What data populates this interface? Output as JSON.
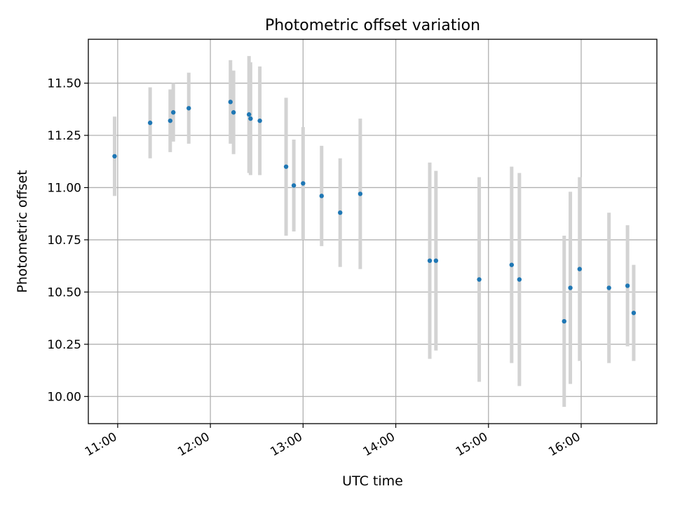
{
  "chart_data": {
    "type": "scatter",
    "title": "Photometric offset variation",
    "xlabel": "UTC time",
    "ylabel": "Photometric offset",
    "xlim": [
      "10:41",
      "16:49"
    ],
    "ylim": [
      9.87,
      11.71
    ],
    "x_ticks": [
      "11:00",
      "12:00",
      "13:00",
      "14:00",
      "15:00",
      "16:00"
    ],
    "y_ticks": [
      "10.00",
      "10.25",
      "10.50",
      "10.75",
      "11.00",
      "11.25",
      "11.50"
    ],
    "grid": true,
    "colors": {
      "points": "#1f77b4",
      "error_bars": "#d3d3d3",
      "grid": "#b0b0b0"
    },
    "points": [
      {
        "x": "10:58",
        "y": 11.15,
        "err": 0.19
      },
      {
        "x": "11:21",
        "y": 11.31,
        "err": 0.17
      },
      {
        "x": "11:34",
        "y": 11.32,
        "err": 0.15
      },
      {
        "x": "11:36",
        "y": 11.36,
        "err": 0.14
      },
      {
        "x": "11:46",
        "y": 11.38,
        "err": 0.17
      },
      {
        "x": "12:13",
        "y": 11.41,
        "err": 0.2
      },
      {
        "x": "12:15",
        "y": 11.36,
        "err": 0.2
      },
      {
        "x": "12:25",
        "y": 11.35,
        "err": 0.28
      },
      {
        "x": "12:26",
        "y": 11.33,
        "err": 0.27
      },
      {
        "x": "12:32",
        "y": 11.32,
        "err": 0.26
      },
      {
        "x": "12:49",
        "y": 11.1,
        "err": 0.33
      },
      {
        "x": "12:54",
        "y": 11.01,
        "err": 0.22
      },
      {
        "x": "13:00",
        "y": 11.02,
        "err": 0.27
      },
      {
        "x": "13:12",
        "y": 10.96,
        "err": 0.24
      },
      {
        "x": "13:24",
        "y": 10.88,
        "err": 0.26
      },
      {
        "x": "13:37",
        "y": 10.97,
        "err": 0.36
      },
      {
        "x": "14:22",
        "y": 10.65,
        "err": 0.47
      },
      {
        "x": "14:26",
        "y": 10.65,
        "err": 0.43
      },
      {
        "x": "14:54",
        "y": 10.56,
        "err": 0.49
      },
      {
        "x": "15:15",
        "y": 10.63,
        "err": 0.47
      },
      {
        "x": "15:20",
        "y": 10.56,
        "err": 0.51
      },
      {
        "x": "15:49",
        "y": 10.36,
        "err": 0.41
      },
      {
        "x": "15:53",
        "y": 10.52,
        "err": 0.46
      },
      {
        "x": "15:59",
        "y": 10.61,
        "err": 0.44
      },
      {
        "x": "16:18",
        "y": 10.52,
        "err": 0.36
      },
      {
        "x": "16:30",
        "y": 10.53,
        "err": 0.29
      },
      {
        "x": "16:34",
        "y": 10.4,
        "err": 0.23
      }
    ]
  }
}
